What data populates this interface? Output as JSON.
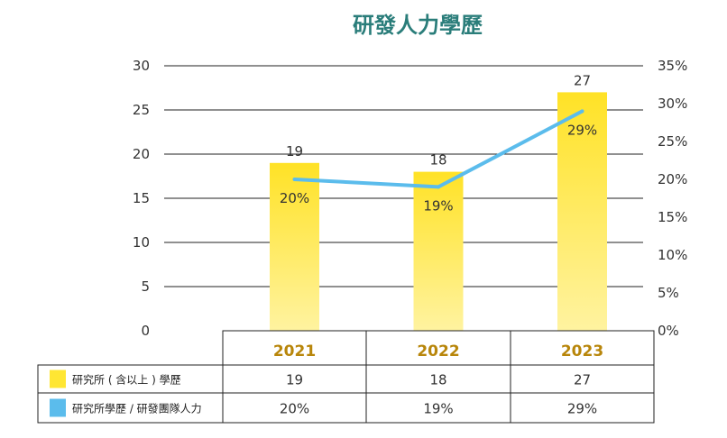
{
  "chart_data": {
    "type": "bar",
    "title": "研發人力學歷",
    "categories": [
      "2021",
      "2022",
      "2023"
    ],
    "series": [
      {
        "name": "研究所(含以上)學歷",
        "type": "bar",
        "axis": "left",
        "values": [
          19,
          18,
          27
        ],
        "labels": [
          "19",
          "18",
          "27"
        ],
        "color": "#ffe633"
      },
      {
        "name": "研究所學歷/研發團隊人力",
        "type": "line",
        "axis": "right",
        "values": [
          20,
          19,
          29
        ],
        "labels": [
          "20%",
          "19%",
          "29%"
        ],
        "color": "#5bbcec"
      }
    ],
    "y_left": {
      "ylim": [
        0,
        30
      ],
      "ticks": [
        "0",
        "5",
        "10",
        "15",
        "20",
        "25",
        "30"
      ]
    },
    "y_right": {
      "ylim": [
        0,
        35
      ],
      "ticks": [
        "0%",
        "5%",
        "10%",
        "15%",
        "20%",
        "25%",
        "30%",
        "35%"
      ]
    },
    "grid": true,
    "legend": "data-table-bottom"
  },
  "table": {
    "row_labels": [
      "研究所 ( 含以上 ) 學歷",
      "研究所學歷 / 研發團隊人力"
    ],
    "rows": [
      [
        "19",
        "18",
        "27"
      ],
      [
        "20%",
        "19%",
        "29%"
      ]
    ]
  }
}
